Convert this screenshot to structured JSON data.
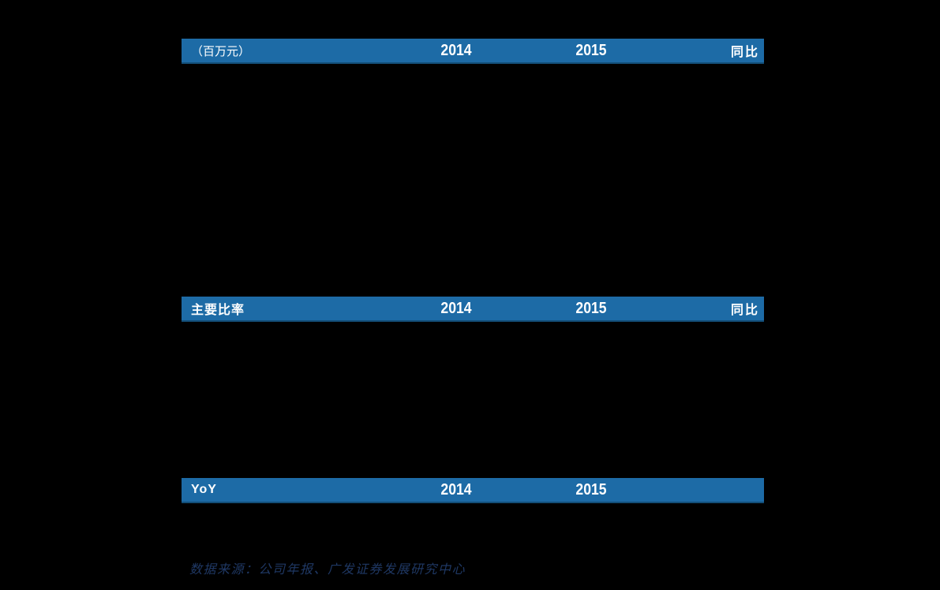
{
  "colors": {
    "background": "#000000",
    "header_bar": "#1d6ba6",
    "header_bar_bottom_edge": "#134e78",
    "header_text": "#ffffff",
    "source_text": "#1f3864"
  },
  "tables": [
    {
      "id": "financials-millions",
      "header": {
        "label": "（百万元）",
        "col1": "2014",
        "col2": "2015",
        "col3": "同比"
      }
    },
    {
      "id": "key-ratios",
      "header": {
        "label": "主要比率",
        "col1": "2014",
        "col2": "2015",
        "col3": "同比"
      }
    },
    {
      "id": "yoy",
      "header": {
        "label": "YoY",
        "col1": "2014",
        "col2": "2015",
        "col3": ""
      }
    }
  ],
  "footer": {
    "source": "数据来源：公司年报、广发证券发展研究中心"
  }
}
